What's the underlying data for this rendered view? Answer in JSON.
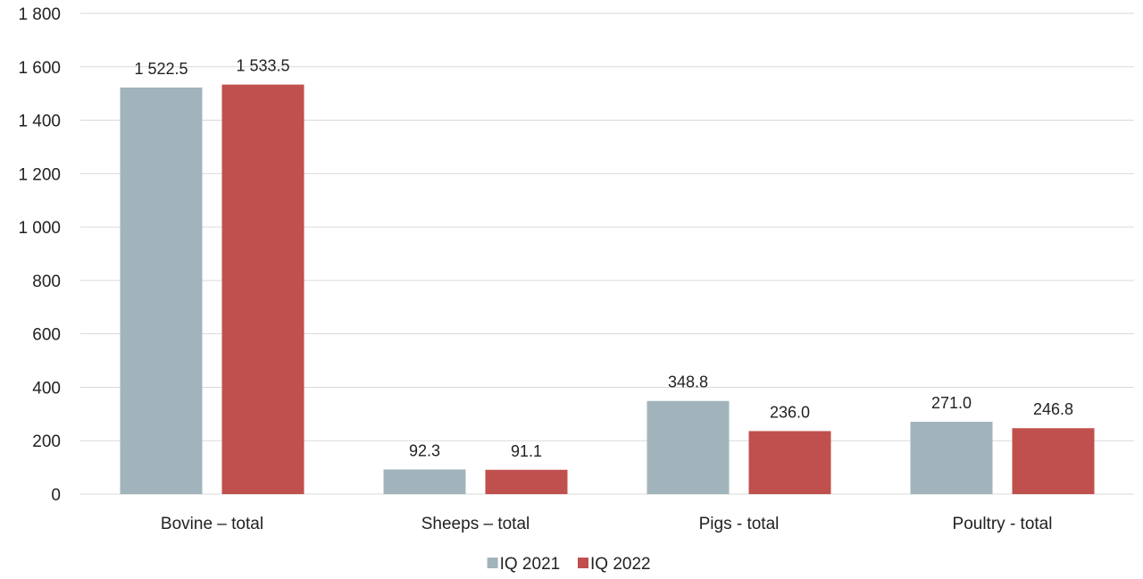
{
  "chart_data": {
    "type": "bar",
    "categories": [
      "Bovine – total",
      "Sheeps – total",
      "Pigs - total",
      "Poultry -  total"
    ],
    "series": [
      {
        "name": "IQ 2021",
        "values": [
          1522.5,
          92.3,
          348.8,
          271.0
        ],
        "labels": [
          "1 522.5",
          "92.3",
          "348.8",
          "271.0"
        ],
        "color": "#a2b4bb"
      },
      {
        "name": "IQ 2022",
        "values": [
          1533.5,
          91.1,
          236.0,
          246.8
        ],
        "labels": [
          "1 533.5",
          "91.1",
          "236.0",
          "246.8"
        ],
        "color": "#c0504d"
      }
    ],
    "title": "",
    "xlabel": "",
    "ylabel": "",
    "ylim": [
      0,
      1800
    ],
    "yticks": [
      0,
      200,
      400,
      600,
      800,
      1000,
      1200,
      1400,
      1600,
      1800
    ],
    "ytick_labels": [
      "0",
      "200",
      "400",
      "600",
      "800",
      "1 000",
      "1 200",
      "1 400",
      "1 600",
      "1 800"
    ],
    "grid": true,
    "legend_position": "bottom"
  }
}
